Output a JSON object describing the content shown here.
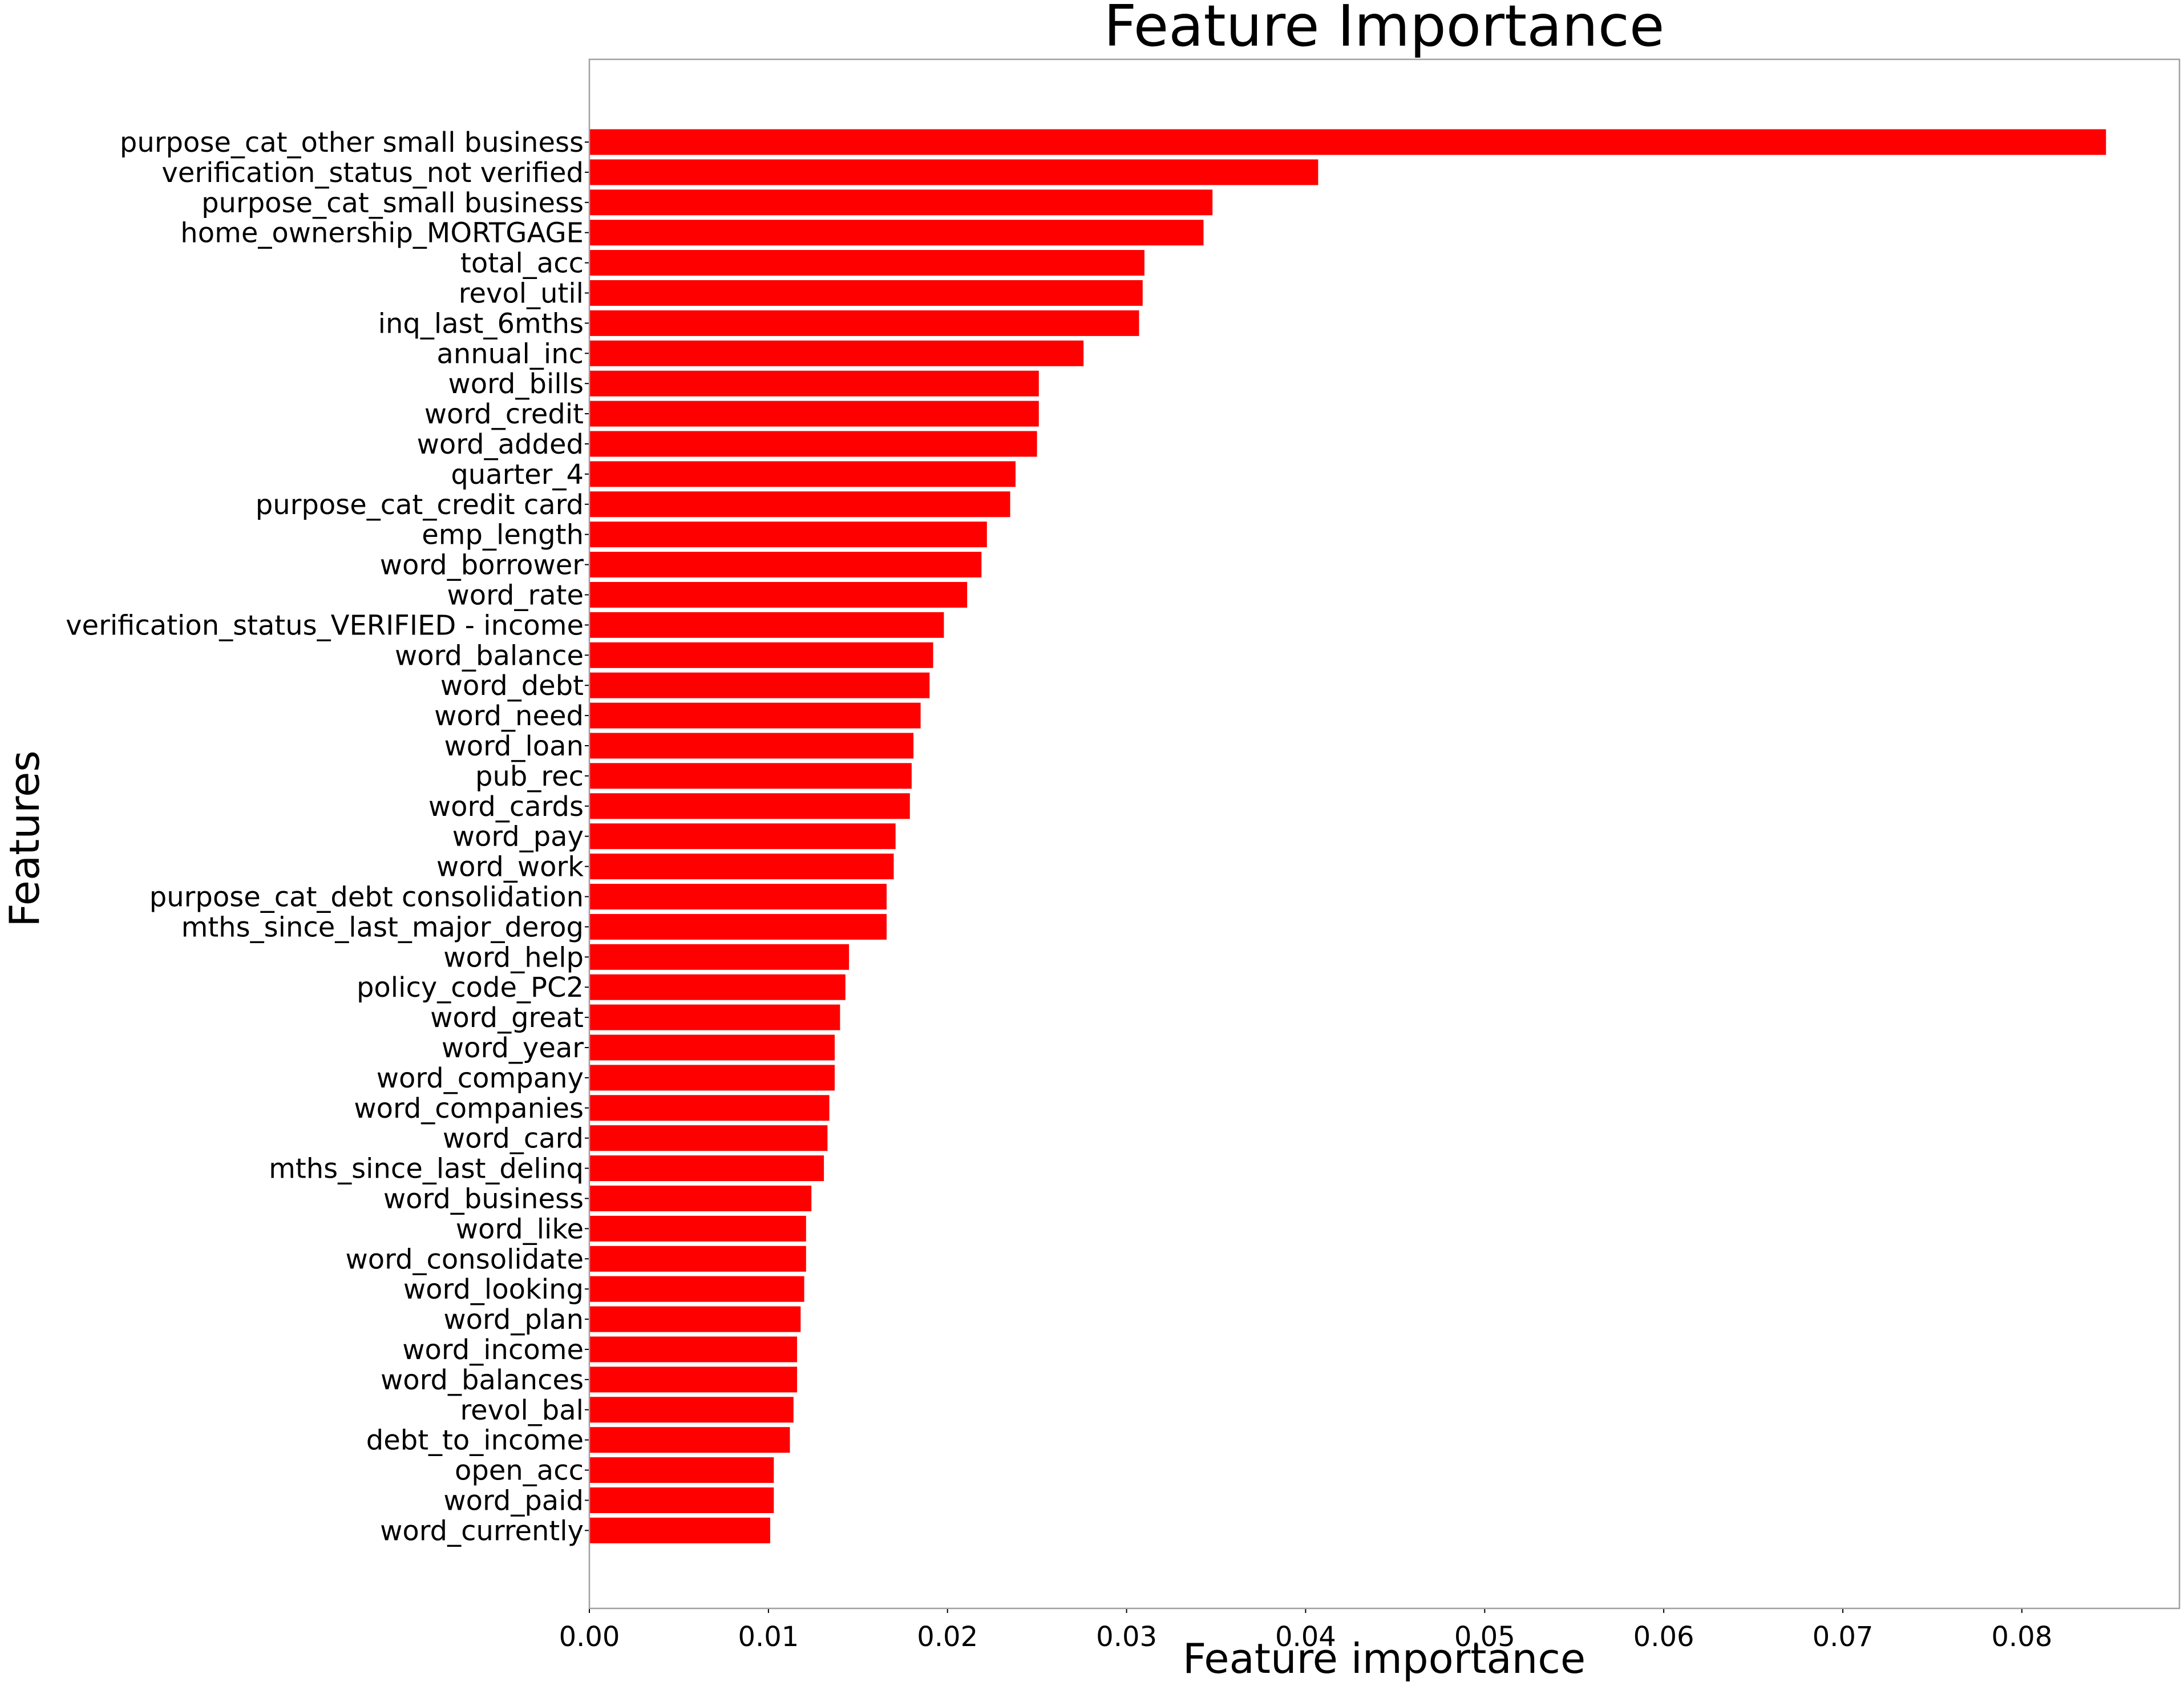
{
  "chart_data": {
    "type": "bar",
    "orientation": "horizontal",
    "title": "Feature Importance",
    "xlabel": "Feature importance",
    "ylabel": "Features",
    "xlim": [
      0,
      0.0888
    ],
    "x_ticks": [
      "0.00",
      "0.01",
      "0.02",
      "0.03",
      "0.04",
      "0.05",
      "0.06",
      "0.07",
      "0.08"
    ],
    "x_tick_values": [
      0,
      0.01,
      0.02,
      0.03,
      0.04,
      0.05,
      0.06,
      0.07,
      0.08
    ],
    "grid": false,
    "bar_color": "#ff0000",
    "categories": [
      "purpose_cat_other small business",
      "verification_status_not verified",
      "purpose_cat_small business",
      "home_ownership_MORTGAGE",
      "total_acc",
      "revol_util",
      "inq_last_6mths",
      "annual_inc",
      "word_bills",
      "word_credit",
      "word_added",
      "quarter_4",
      "purpose_cat_credit card",
      "emp_length",
      "word_borrower",
      "word_rate",
      "verification_status_VERIFIED - income",
      "word_balance",
      "word_debt",
      "word_need",
      "word_loan",
      "pub_rec",
      "word_cards",
      "word_pay",
      "word_work",
      "purpose_cat_debt consolidation",
      "mths_since_last_major_derog",
      "word_help",
      "policy_code_PC2",
      "word_great",
      "word_year",
      "word_company",
      "word_companies",
      "word_card",
      "mths_since_last_delinq",
      "word_business",
      "word_like",
      "word_consolidate",
      "word_looking",
      "word_plan",
      "word_income",
      "word_balances",
      "revol_bal",
      "debt_to_income",
      "open_acc",
      "word_paid",
      "word_currently"
    ],
    "values": [
      0.0847,
      0.0407,
      0.0348,
      0.0343,
      0.031,
      0.0309,
      0.0307,
      0.0276,
      0.0251,
      0.0251,
      0.025,
      0.0238,
      0.0235,
      0.0222,
      0.0219,
      0.0211,
      0.0198,
      0.0192,
      0.019,
      0.0185,
      0.0181,
      0.018,
      0.0179,
      0.0171,
      0.017,
      0.0166,
      0.0166,
      0.0145,
      0.0143,
      0.014,
      0.0137,
      0.0137,
      0.0134,
      0.0133,
      0.0131,
      0.0124,
      0.0121,
      0.0121,
      0.012,
      0.0118,
      0.0116,
      0.0116,
      0.0114,
      0.0112,
      0.0103,
      0.0103,
      0.0101
    ]
  }
}
